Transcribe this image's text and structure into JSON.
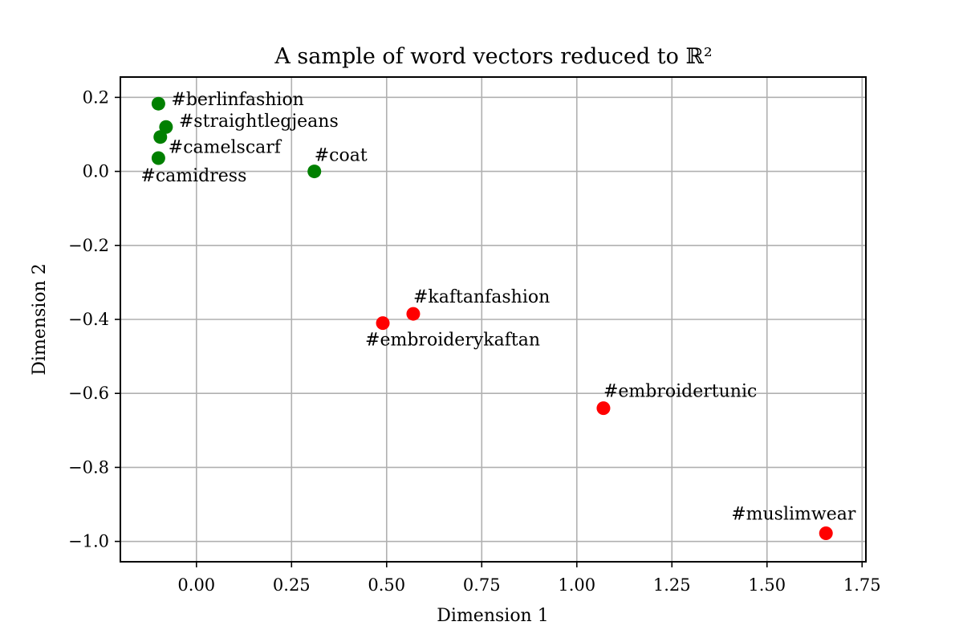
{
  "chart_data": {
    "type": "scatter",
    "title": "A sample of word vectors reduced to ℝ²",
    "xlabel": "Dimension 1",
    "ylabel": "Dimension 2",
    "xlim": [
      -0.2,
      1.76
    ],
    "ylim": [
      -1.055,
      0.255
    ],
    "grid": true,
    "xticks": [
      0.0,
      0.25,
      0.5,
      0.75,
      1.0,
      1.25,
      1.5,
      1.75
    ],
    "xtick_labels": [
      "0.00",
      "0.25",
      "0.50",
      "0.75",
      "1.00",
      "1.25",
      "1.50",
      "1.75"
    ],
    "yticks": [
      0.2,
      0.0,
      -0.2,
      -0.4,
      -0.6,
      -0.8,
      -1.0
    ],
    "ytick_labels": [
      "0.2",
      "0.0",
      "−0.2",
      "−0.4",
      "−0.6",
      "−0.8",
      "−1.0"
    ],
    "colors": {
      "cluster_a": "#008000",
      "cluster_b": "#ff0000",
      "grid": "#b0b0b0"
    },
    "points": [
      {
        "label": "#berlinfashion",
        "x": -0.1,
        "y": 0.183,
        "group": "cluster_a"
      },
      {
        "label": "#straightlegjeans",
        "x": -0.08,
        "y": 0.12,
        "group": "cluster_a"
      },
      {
        "label": "#camelscarf",
        "x": -0.095,
        "y": 0.093,
        "group": "cluster_a"
      },
      {
        "label": "#camidress",
        "x": -0.1,
        "y": 0.036,
        "group": "cluster_a"
      },
      {
        "label": "#coat",
        "x": 0.31,
        "y": 0.0,
        "group": "cluster_a"
      },
      {
        "label": "#kaftanfashion",
        "x": 0.57,
        "y": -0.385,
        "group": "cluster_b"
      },
      {
        "label": "#embroiderykaftan",
        "x": 0.49,
        "y": -0.41,
        "group": "cluster_b"
      },
      {
        "label": "#embroidertunic",
        "x": 1.07,
        "y": -0.64,
        "group": "cluster_b"
      },
      {
        "label": "#muslimwear",
        "x": 1.655,
        "y": -0.978,
        "group": "cluster_b"
      }
    ]
  }
}
